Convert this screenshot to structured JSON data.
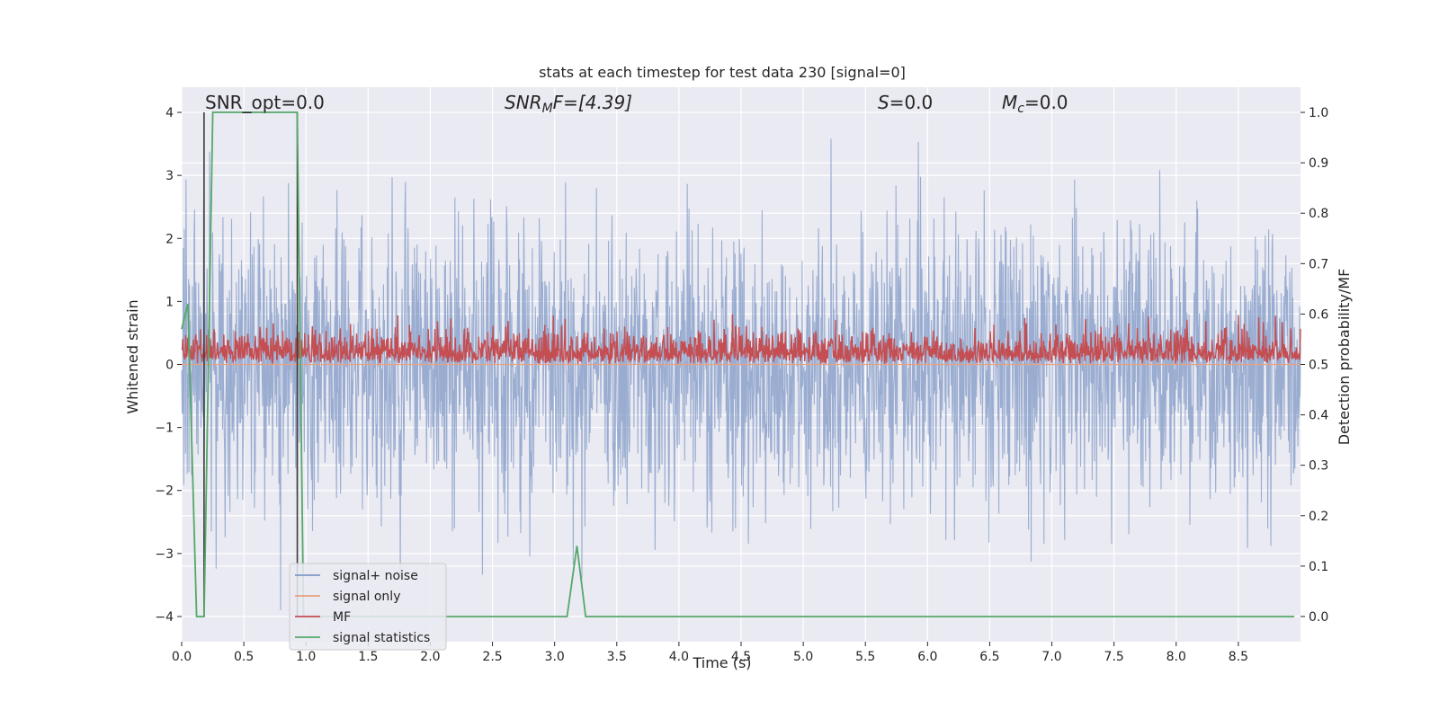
{
  "chart_data": {
    "type": "line",
    "title": "stats at each timestep for test data 230 [signal=0]",
    "xlabel": "Time (s)",
    "ylabel": "Whitened strain",
    "y2label": "Detection probability/MF",
    "xlim": [
      0.0,
      9.0
    ],
    "ylim": [
      -4.4,
      4.4
    ],
    "y2lim": [
      -0.05,
      1.05
    ],
    "xticks": [
      "0.0",
      "0.5",
      "1.0",
      "1.5",
      "2.0",
      "2.5",
      "3.0",
      "3.5",
      "4.0",
      "4.5",
      "5.0",
      "5.5",
      "6.0",
      "6.5",
      "7.0",
      "7.5",
      "8.0",
      "8.5"
    ],
    "yticks": [
      "4",
      "3",
      "2",
      "1",
      "0",
      "−1",
      "−2",
      "−3",
      "−4"
    ],
    "y2ticks": [
      "1.0",
      "0.9",
      "0.8",
      "0.7",
      "0.6",
      "0.5",
      "0.4",
      "0.3",
      "0.2",
      "0.1",
      "0.0"
    ],
    "grid": true,
    "legend_placement": "lower-left",
    "annotations": {
      "snr_opt": "SNR_opt=0.0",
      "snr_mf_sym": "SNR",
      "snr_mf_sub": "M",
      "snr_mf_rest": "F=[4.39]",
      "s_sym": "S",
      "s_rest": "=0.0",
      "mc_sym": "M",
      "mc_sub": "c",
      "mc_rest": "=0.0"
    },
    "series": [
      {
        "name": "signal+ noise",
        "color": "#7f98c6",
        "axis": "left",
        "description_values": {
          "x_range": [
            0.0,
            9.0
          ],
          "envelope_min": -3.9,
          "envelope_max": 4.0
        }
      },
      {
        "name": "signal only",
        "color": "#e8a07e",
        "axis": "left",
        "x": [
          0.0,
          9.0
        ],
        "y": [
          0.0,
          0.0
        ]
      },
      {
        "name": "MF",
        "color": "#c44e52",
        "axis": "right",
        "description_values": {
          "x_range": [
            0.0,
            9.0
          ],
          "baseline": 0.5,
          "typical_max": 0.58,
          "peak": 0.6
        }
      },
      {
        "name": "signal statistics",
        "color": "#55a868",
        "axis": "right",
        "x": [
          0.0,
          0.05,
          0.12,
          0.18,
          0.25,
          0.93,
          0.98,
          1.02,
          3.1,
          3.18,
          3.25,
          8.95
        ],
        "y": [
          0.57,
          0.62,
          0.0,
          0.0,
          1.0,
          1.0,
          0.0,
          0.0,
          0.0,
          0.14,
          0.0,
          0.0
        ]
      }
    ],
    "vlines": [
      0.18,
      0.93
    ]
  }
}
